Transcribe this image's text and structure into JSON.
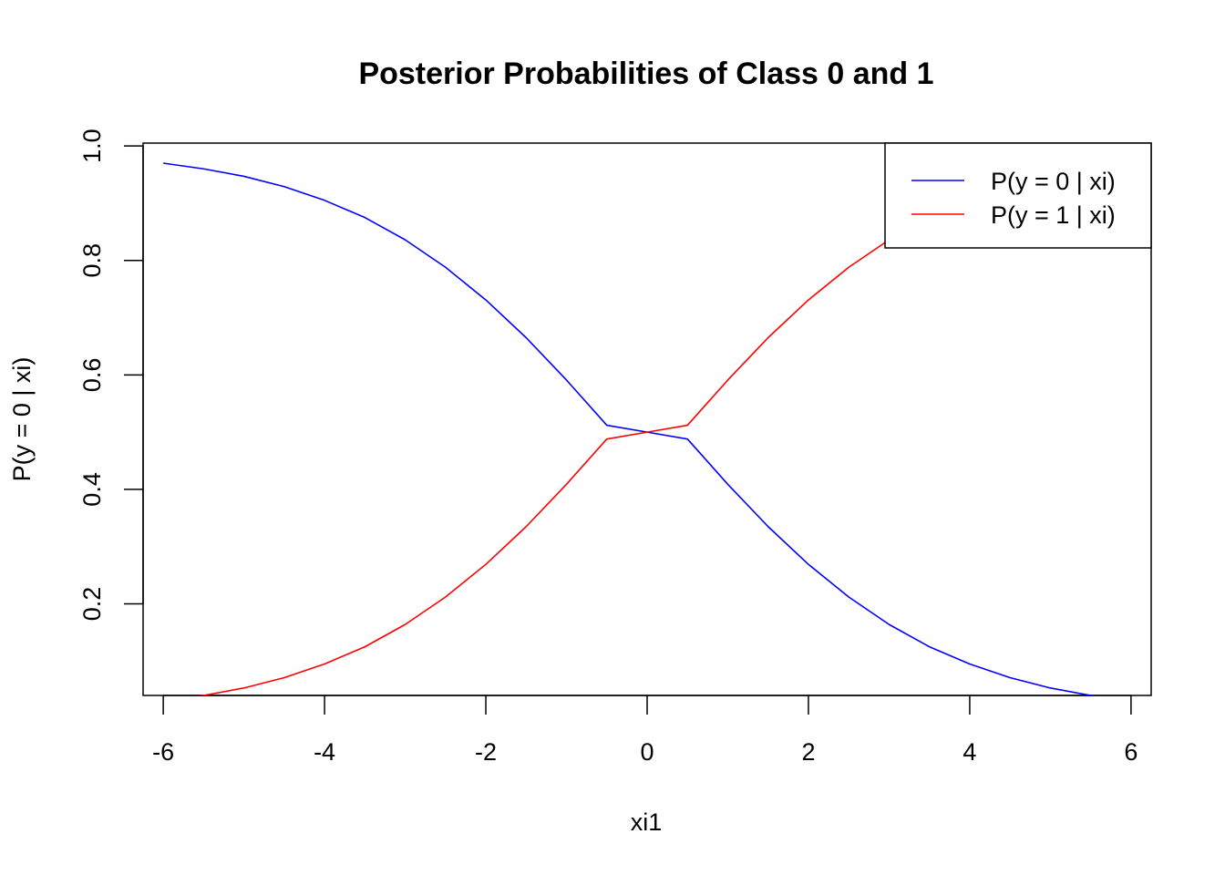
{
  "chart_data": {
    "type": "line",
    "title": "Posterior Probabilities of Class 0 and 1",
    "xlabel": "xi1",
    "ylabel": "P(y = 0 | xi)",
    "xlim": [
      -6.25,
      6.25
    ],
    "ylim": [
      0.04,
      1.005
    ],
    "x_ticks": [
      -6,
      -4,
      -2,
      0,
      2,
      4,
      6
    ],
    "x_tick_labels": [
      "-6",
      "-4",
      "-2",
      "0",
      "2",
      "4",
      "6"
    ],
    "y_ticks": [
      0.2,
      0.4,
      0.6,
      0.8,
      1.0
    ],
    "y_tick_labels": [
      "0.2",
      "0.4",
      "0.6",
      "0.8",
      "1.0"
    ],
    "grid": false,
    "legend_position": "top-right",
    "x": [
      -6,
      -5.5,
      -5,
      -4.5,
      -4,
      -3.5,
      -3,
      -2.5,
      -2,
      -1.5,
      -1,
      -0.5,
      0,
      0.5,
      1,
      1.5,
      2,
      2.5,
      3,
      3.5,
      4,
      4.5,
      5,
      5.5,
      6
    ],
    "series": [
      {
        "name": "P(y = 0 | xi)",
        "color": "#0000ff",
        "values": [
          0.97,
          0.96,
          0.947,
          0.929,
          0.905,
          0.875,
          0.836,
          0.788,
          0.731,
          0.665,
          0.591,
          0.512,
          0.5,
          0.488,
          0.409,
          0.335,
          0.269,
          0.212,
          0.164,
          0.125,
          0.095,
          0.071,
          0.053,
          0.04,
          0.03
        ]
      },
      {
        "name": "P(y = 1 | xi)",
        "color": "#ff0000",
        "values": [
          0.03,
          0.04,
          0.053,
          0.071,
          0.095,
          0.125,
          0.164,
          0.212,
          0.269,
          0.335,
          0.409,
          0.488,
          0.5,
          0.512,
          0.591,
          0.665,
          0.731,
          0.788,
          0.836,
          0.875,
          0.905,
          0.929,
          0.947,
          0.96,
          0.97
        ]
      }
    ]
  }
}
